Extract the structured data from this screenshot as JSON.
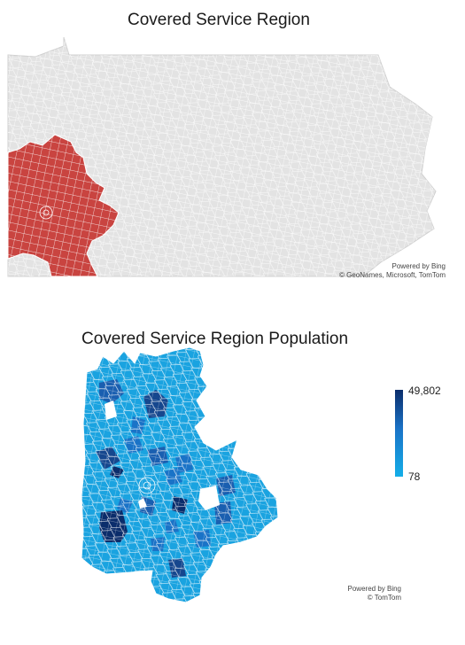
{
  "map1": {
    "title": "Covered Service Region",
    "attribution": {
      "line1": "Powered by Bing",
      "line2": "© GeoNames, Microsoft, TomTom"
    },
    "colors": {
      "land": "#e3e3e3",
      "highlight": "#c94440",
      "border": "#ffffff"
    }
  },
  "map2": {
    "title": "Covered Service Region Population",
    "attribution": {
      "line1": "Powered by Bing",
      "line2": "© TomTom"
    },
    "legend": {
      "max_label": "49,802",
      "min_label": "78",
      "max_color": "#0b2d6b",
      "min_color": "#14aee8"
    },
    "colors": {
      "base": "#1aa3e0",
      "mid": "#1a73c7",
      "dark": "#0b2d6b",
      "hole": "#ffffff"
    }
  }
}
